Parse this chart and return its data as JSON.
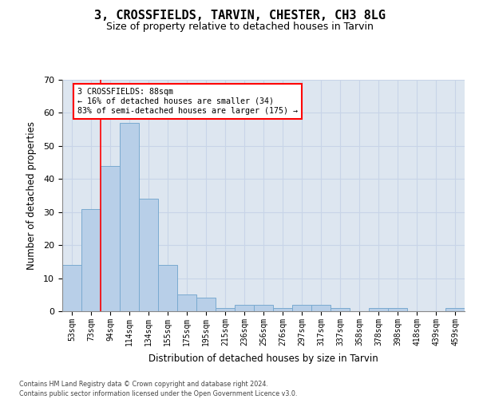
{
  "title1": "3, CROSSFIELDS, TARVIN, CHESTER, CH3 8LG",
  "title2": "Size of property relative to detached houses in Tarvin",
  "xlabel": "Distribution of detached houses by size in Tarvin",
  "ylabel": "Number of detached properties",
  "categories": [
    "53sqm",
    "73sqm",
    "94sqm",
    "114sqm",
    "134sqm",
    "155sqm",
    "175sqm",
    "195sqm",
    "215sqm",
    "236sqm",
    "256sqm",
    "276sqm",
    "297sqm",
    "317sqm",
    "337sqm",
    "358sqm",
    "378sqm",
    "398sqm",
    "418sqm",
    "439sqm",
    "459sqm"
  ],
  "values": [
    14,
    31,
    44,
    57,
    34,
    14,
    5,
    4,
    1,
    2,
    2,
    1,
    2,
    2,
    1,
    0,
    1,
    1,
    0,
    0,
    1
  ],
  "bar_color": "#b8cfe8",
  "bar_edge_color": "#7aaad0",
  "annotation_text1": "3 CROSSFIELDS: 88sqm",
  "annotation_text2": "← 16% of detached houses are smaller (34)",
  "annotation_text3": "83% of semi-detached houses are larger (175) →",
  "vline_x_index": 1.5,
  "ylim": [
    0,
    70
  ],
  "yticks": [
    0,
    10,
    20,
    30,
    40,
    50,
    60,
    70
  ],
  "grid_color": "#c8d4e8",
  "bg_color": "#dde6f0",
  "footnote1": "Contains HM Land Registry data © Crown copyright and database right 2024.",
  "footnote2": "Contains public sector information licensed under the Open Government Licence v3.0."
}
